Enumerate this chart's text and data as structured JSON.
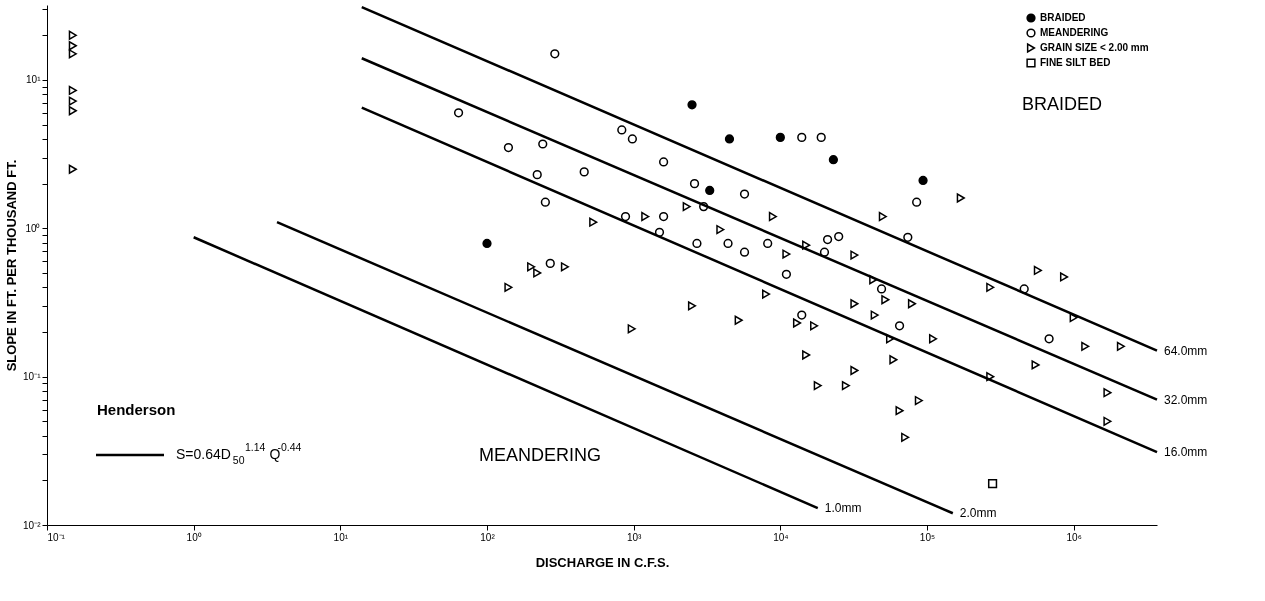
{
  "chart_data": {
    "type": "scatter",
    "xlabel": "DISCHARGE IN C.F.S.",
    "ylabel": "SLOPE IN FT. PER THOUSAND FT.",
    "log": "xy",
    "grid": false,
    "legend": "top right",
    "line_style": "solid",
    "xlim": [
      0.1,
      3700000
    ],
    "ylim": [
      0.01,
      32
    ],
    "xticks": [
      {
        "value": 0.1,
        "label": "10⁻¹"
      },
      {
        "value": 1,
        "label": "10⁰"
      },
      {
        "value": 10,
        "label": "10¹"
      },
      {
        "value": 100,
        "label": "10²"
      },
      {
        "value": 1000,
        "label": "10³"
      },
      {
        "value": 10000,
        "label": "10⁴"
      },
      {
        "value": 100000,
        "label": "10⁵"
      },
      {
        "value": 1000000,
        "label": "10⁶"
      }
    ],
    "yticks": [
      {
        "value": 0.01,
        "label": "10⁻²"
      },
      {
        "value": 0.02,
        "label": null
      },
      {
        "value": 0.03,
        "label": null
      },
      {
        "value": 0.04,
        "label": null
      },
      {
        "value": 0.05,
        "label": null
      },
      {
        "value": 0.06,
        "label": null
      },
      {
        "value": 0.07,
        "label": null
      },
      {
        "value": 0.08,
        "label": null
      },
      {
        "value": 0.09,
        "label": null
      },
      {
        "value": 0.1,
        "label": "10⁻¹"
      },
      {
        "value": 0.2,
        "label": null
      },
      {
        "value": 0.3,
        "label": null
      },
      {
        "value": 0.4,
        "label": null
      },
      {
        "value": 0.5,
        "label": null
      },
      {
        "value": 0.6,
        "label": null
      },
      {
        "value": 0.7,
        "label": null
      },
      {
        "value": 0.8,
        "label": null
      },
      {
        "value": 0.9,
        "label": null
      },
      {
        "value": 1,
        "label": "10⁰"
      },
      {
        "value": 2,
        "label": null
      },
      {
        "value": 3,
        "label": null
      },
      {
        "value": 4,
        "label": null
      },
      {
        "value": 5,
        "label": null
      },
      {
        "value": 6,
        "label": null
      },
      {
        "value": 7,
        "label": null
      },
      {
        "value": 8,
        "label": null
      },
      {
        "value": 9,
        "label": null
      },
      {
        "value": 10,
        "label": "10¹"
      },
      {
        "value": 20,
        "label": null
      },
      {
        "value": 30,
        "label": null
      }
    ],
    "annotations": [
      "BRAIDED",
      "MEANDERING",
      "Henderson",
      "S=0.64D$_{50}$$^{1.14}$Q$^{-0.44}$"
    ],
    "series": [
      {
        "name": "BRAIDED",
        "marker": "circle",
        "color": "#000000",
        "x": [
          2500,
          4500,
          10000,
          3300,
          100,
          23000,
          94000
        ],
        "values": [
          6.8,
          4.0,
          4.1,
          1.8,
          0.79,
          2.9,
          2.1
        ]
      },
      {
        "name": "MEANDERING",
        "marker": "circle",
        "color": "#000000",
        "x": [
          290,
          64,
          830,
          980,
          14000,
          19000,
          140,
          240,
          1600,
          220,
          460,
          2600,
          5700,
          250,
          3000,
          1600,
          880,
          1500,
          2700,
          4400,
          8200,
          5700,
          11000,
          270,
          21000,
          25000,
          20000,
          85000,
          74000,
          49000,
          65000,
          680000,
          14000,
          460000
        ],
        "values": [
          15,
          6.0,
          4.6,
          4.0,
          4.1,
          4.1,
          3.5,
          3.7,
          2.8,
          2.3,
          2.4,
          2.0,
          1.7,
          1.5,
          1.4,
          1.2,
          1.2,
          0.94,
          0.79,
          0.79,
          0.79,
          0.69,
          0.49,
          0.58,
          0.84,
          0.88,
          0.69,
          1.5,
          0.87,
          0.39,
          0.22,
          0.18,
          0.26,
          0.39
        ]
      },
      {
        "name": "GRAIN SIZE < 2.00 mm",
        "marker": "triangle",
        "color": "#000000",
        "x": [
          0.15,
          0.15,
          0.15,
          0.15,
          0.15,
          0.15,
          0.15,
          530,
          1200,
          2300,
          3900,
          8900,
          11000,
          200,
          220,
          340,
          140,
          15000,
          170000,
          50000,
          32000,
          570000,
          860000,
          43000,
          270000,
          52000,
          32000,
          79000,
          44000,
          8000,
          2500,
          970,
          5200,
          13000,
          17000,
          56000,
          110000,
          1000000,
          1200000,
          2100000,
          550000,
          15000,
          59000,
          32000,
          270000,
          1700000,
          18000,
          28000,
          88000,
          65000,
          1700000,
          71000
        ],
        "values": [
          20,
          17,
          15,
          8.5,
          7.2,
          6.2,
          2.5,
          1.1,
          1.2,
          1.4,
          0.98,
          1.2,
          0.67,
          0.55,
          0.5,
          0.55,
          0.4,
          0.77,
          1.6,
          1.2,
          0.66,
          0.52,
          0.47,
          0.45,
          0.4,
          0.33,
          0.31,
          0.31,
          0.26,
          0.36,
          0.3,
          0.21,
          0.24,
          0.23,
          0.22,
          0.18,
          0.18,
          0.25,
          0.16,
          0.16,
          0.12,
          0.14,
          0.13,
          0.11,
          0.1,
          0.078,
          0.087,
          0.087,
          0.069,
          0.059,
          0.05,
          0.039
        ]
      },
      {
        "name": "FINE SILT BED",
        "marker": "square",
        "color": "#000000",
        "x": [
          280000
        ],
        "values": [
          0.019
        ]
      },
      {
        "name": "64.0mm",
        "type": "line",
        "color": "#000000",
        "x": [
          14,
          3700000
        ],
        "values": [
          31,
          0.15
        ]
      },
      {
        "name": "32.0mm",
        "type": "line",
        "color": "#000000",
        "x": [
          14,
          3700000
        ],
        "values": [
          14,
          0.07
        ]
      },
      {
        "name": "16.0mm",
        "type": "line",
        "color": "#000000",
        "x": [
          14,
          3700000
        ],
        "values": [
          6.5,
          0.031
        ]
      },
      {
        "name": "2.0mm",
        "type": "line",
        "color": "#000000",
        "x": [
          3.7,
          150000
        ],
        "values": [
          1.1,
          0.012
        ]
      },
      {
        "name": "1.0mm",
        "type": "line",
        "color": "#000000",
        "x": [
          1,
          18000
        ],
        "values": [
          0.87,
          0.013
        ]
      }
    ]
  }
}
